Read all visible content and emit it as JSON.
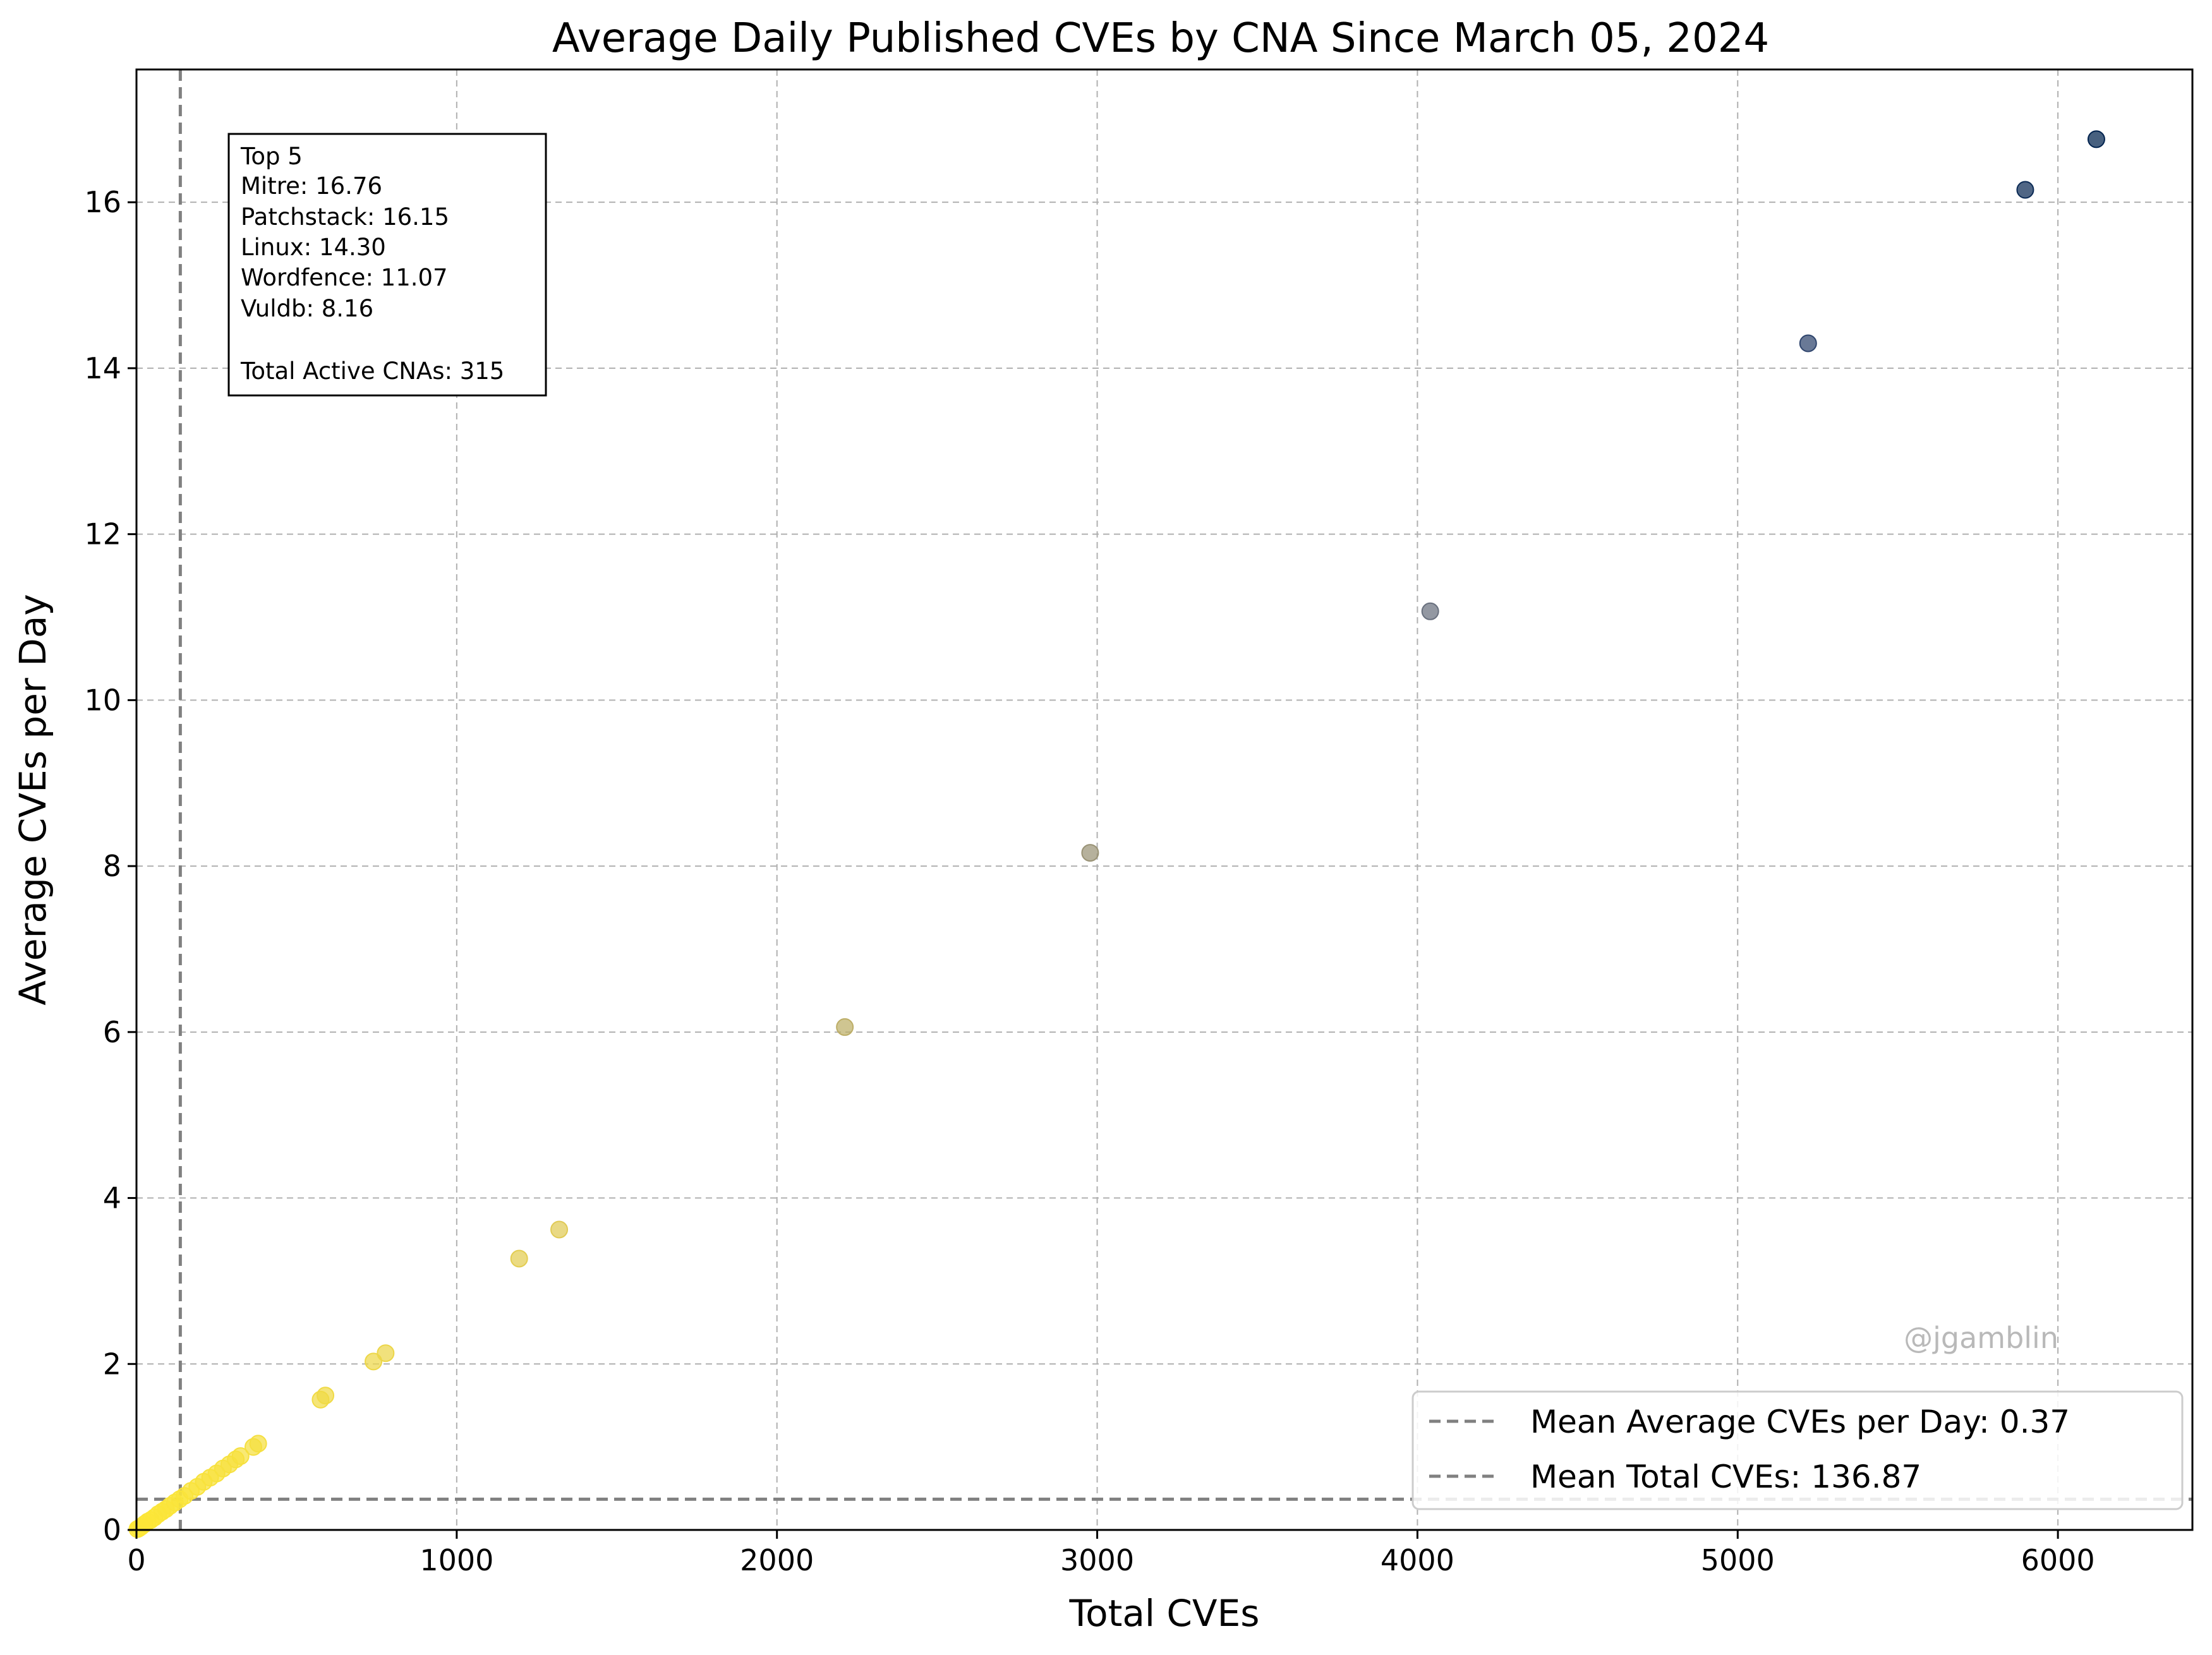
{
  "chart_data": {
    "type": "scatter",
    "title": "Average Daily Published CVEs by CNA Since March 05, 2024",
    "xlabel": "Total CVEs",
    "ylabel": "Average CVEs per Day",
    "xlim": [
      0,
      6420
    ],
    "ylim": [
      0,
      17.6
    ],
    "x_ticks": [
      0,
      1000,
      2000,
      3000,
      4000,
      5000,
      6000
    ],
    "y_ticks": [
      0,
      2,
      4,
      6,
      8,
      10,
      12,
      14,
      16
    ],
    "grid": true,
    "grid_style": "dashed",
    "colormap": "cividis_r",
    "color_low": "#fde737",
    "color_high": "#00224e",
    "points": [
      {
        "x": 6120,
        "y": 16.76
      },
      {
        "x": 5898,
        "y": 16.15
      },
      {
        "x": 5220,
        "y": 14.3
      },
      {
        "x": 4040,
        "y": 11.07
      },
      {
        "x": 2978,
        "y": 8.16
      },
      {
        "x": 2212,
        "y": 6.06
      },
      {
        "x": 1320,
        "y": 3.62
      },
      {
        "x": 1195,
        "y": 3.27
      },
      {
        "x": 778,
        "y": 2.13
      },
      {
        "x": 740,
        "y": 2.03
      },
      {
        "x": 590,
        "y": 1.62
      },
      {
        "x": 575,
        "y": 1.57
      },
      {
        "x": 380,
        "y": 1.04
      },
      {
        "x": 365,
        "y": 1.0
      },
      {
        "x": 325,
        "y": 0.89
      },
      {
        "x": 310,
        "y": 0.85
      },
      {
        "x": 290,
        "y": 0.79
      },
      {
        "x": 270,
        "y": 0.74
      },
      {
        "x": 250,
        "y": 0.68
      },
      {
        "x": 230,
        "y": 0.63
      },
      {
        "x": 210,
        "y": 0.58
      },
      {
        "x": 190,
        "y": 0.52
      },
      {
        "x": 170,
        "y": 0.47
      },
      {
        "x": 150,
        "y": 0.41
      },
      {
        "x": 135,
        "y": 0.37
      },
      {
        "x": 120,
        "y": 0.33
      },
      {
        "x": 105,
        "y": 0.29
      },
      {
        "x": 92,
        "y": 0.25
      },
      {
        "x": 80,
        "y": 0.22
      },
      {
        "x": 68,
        "y": 0.19
      },
      {
        "x": 56,
        "y": 0.15
      },
      {
        "x": 45,
        "y": 0.12
      },
      {
        "x": 35,
        "y": 0.1
      },
      {
        "x": 25,
        "y": 0.07
      },
      {
        "x": 15,
        "y": 0.04
      },
      {
        "x": 8,
        "y": 0.02
      },
      {
        "x": 3,
        "y": 0.01
      }
    ],
    "reference_lines": [
      {
        "orientation": "horizontal",
        "value": 0.37,
        "label": "Mean Average CVEs per Day: 0.37",
        "color": "#808080"
      },
      {
        "orientation": "vertical",
        "value": 136.87,
        "label": "Mean Total CVEs: 136.87",
        "color": "#808080"
      }
    ],
    "annotation_box": {
      "lines": [
        "Top 5",
        "Mitre: 16.76",
        "Patchstack: 16.15",
        "Linux: 14.30",
        "Wordfence: 11.07",
        "Vuldb: 8.16",
        "",
        "Total Active CNAs: 315"
      ],
      "placement": "top-left"
    },
    "legend_placement": "lower-right",
    "watermark": "@jgamblin"
  }
}
